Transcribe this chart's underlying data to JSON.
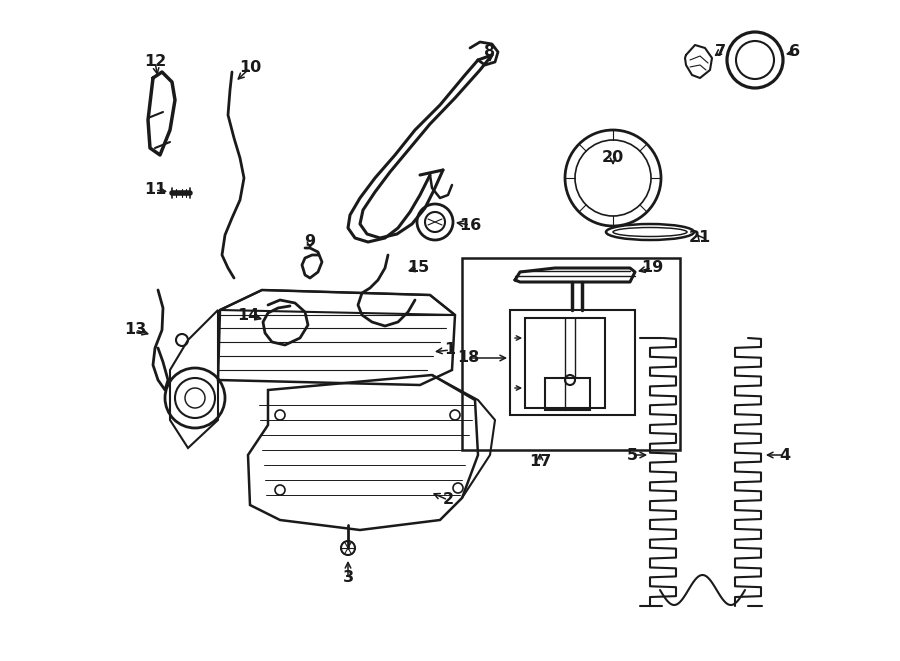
{
  "bg": "#ffffff",
  "lc": "#1a1a1a",
  "lw": 1.5,
  "fs": 11.5,
  "figw": 9.0,
  "figh": 6.61,
  "dpi": 100
}
